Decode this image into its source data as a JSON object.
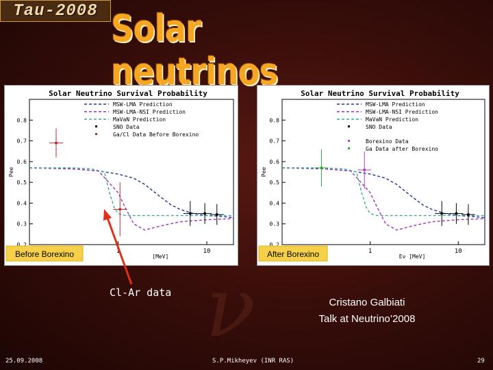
{
  "header": {
    "logo_text": "Tau-2008",
    "title": "Solar neutrinos"
  },
  "annotation": {
    "cl_ar_label": "Cl-Ar data"
  },
  "credit": {
    "line1": "Cristano Galbiati",
    "line2": "Talk at Neutrino’2008"
  },
  "footer": {
    "date": "25.09.2008",
    "author": "S.P.Mikheyev (INR RAS)",
    "page": "29"
  },
  "colors": {
    "msw_lma": "#1f2f9e",
    "msw_lma_nsi": "#9b2fc0",
    "mavan": "#3aa89a",
    "sno": "#000000",
    "gacl": "#c0282c",
    "borexino": "#b040c0",
    "ga_after": "#30b030",
    "badge": "#f7d04a",
    "title_orange": "#f5a623"
  },
  "chart_data": [
    {
      "type": "line",
      "title": "Solar Neutrino Survival Probability",
      "badge": "Before Borexino",
      "xscale": "log",
      "xlim": [
        0.1,
        20
      ],
      "ylim": [
        0.2,
        0.9
      ],
      "yticks": [
        0.2,
        0.3,
        0.4,
        0.5,
        0.6,
        0.7,
        0.8
      ],
      "ytick_labels": [
        "0.2",
        "0.3",
        "0.4",
        "0.5",
        "0.6",
        "0.7",
        "0.8"
      ],
      "xticks": [
        1,
        10
      ],
      "xtick_labels": [
        "1",
        "10"
      ],
      "xlabel": "[MeV]",
      "ylabel": "Pee",
      "legend": [
        "MSW-LMA Prediction",
        "MSW-LMA-NSI Prediction",
        "MaVaN Prediction",
        "SNO Data",
        "Ga/Cl Data Before Borexino"
      ],
      "series": [
        {
          "name": "MSW-LMA Prediction",
          "style": "dashed",
          "x": [
            0.1,
            0.3,
            0.6,
            1,
            1.5,
            2,
            3,
            4,
            5,
            7,
            10,
            15,
            20
          ],
          "y": [
            0.57,
            0.565,
            0.555,
            0.54,
            0.52,
            0.49,
            0.43,
            0.39,
            0.37,
            0.35,
            0.34,
            0.335,
            0.33
          ]
        },
        {
          "name": "MSW-LMA-NSI Prediction",
          "style": "dashed",
          "x": [
            0.1,
            0.3,
            0.6,
            1,
            1.2,
            1.5,
            2,
            3,
            5,
            10,
            20
          ],
          "y": [
            0.57,
            0.565,
            0.555,
            0.45,
            0.38,
            0.3,
            0.27,
            0.29,
            0.31,
            0.32,
            0.325
          ]
        },
        {
          "name": "MaVaN Prediction",
          "style": "dashed",
          "x": [
            0.1,
            0.3,
            0.5,
            0.7,
            0.8,
            0.9,
            1,
            1.2,
            2,
            5,
            10,
            20
          ],
          "y": [
            0.57,
            0.57,
            0.565,
            0.55,
            0.45,
            0.38,
            0.35,
            0.34,
            0.34,
            0.34,
            0.34,
            0.34
          ]
        }
      ],
      "points": [
        {
          "group": "SNO Data",
          "x": 6.5,
          "y": 0.35,
          "err": 0.06
        },
        {
          "group": "SNO Data",
          "x": 9.5,
          "y": 0.35,
          "err": 0.05
        },
        {
          "group": "SNO Data",
          "x": 13,
          "y": 0.345,
          "err": 0.05
        },
        {
          "group": "Ga/Cl Data Before Borexino",
          "x": 0.2,
          "y": 0.69,
          "err": 0.07
        },
        {
          "group": "Ga/Cl Data Before Borexino",
          "x": 1.05,
          "y": 0.37,
          "err": 0.13
        }
      ]
    },
    {
      "type": "line",
      "title": "Solar Neutrino Survival Probability",
      "badge": "After Borexino",
      "xscale": "log",
      "xlim": [
        0.1,
        20
      ],
      "ylim": [
        0.2,
        0.9
      ],
      "yticks": [
        0.2,
        0.3,
        0.4,
        0.5,
        0.6,
        0.7,
        0.8
      ],
      "ytick_labels": [
        "0.2",
        "0.3",
        "0.4",
        "0.5",
        "0.6",
        "0.7",
        "0.8"
      ],
      "xticks": [
        1,
        10
      ],
      "xtick_labels": [
        "1",
        "10"
      ],
      "xlabel": "Eν [MeV]",
      "ylabel": "Pee",
      "legend": [
        "MSW-LMA Prediction",
        "MSW-LMA-NSI Prediction",
        "MaVaN Prediction",
        "SNO Data",
        "Borexino Data",
        "Ga Data after Borexino"
      ],
      "series": [
        {
          "name": "MSW-LMA Prediction",
          "style": "dashed",
          "x": [
            0.1,
            0.3,
            0.6,
            1,
            1.5,
            2,
            3,
            4,
            5,
            7,
            10,
            15,
            20
          ],
          "y": [
            0.57,
            0.565,
            0.555,
            0.54,
            0.52,
            0.49,
            0.43,
            0.39,
            0.37,
            0.35,
            0.34,
            0.335,
            0.33
          ]
        },
        {
          "name": "MSW-LMA-NSI Prediction",
          "style": "dashed",
          "x": [
            0.1,
            0.3,
            0.6,
            1,
            1.2,
            1.5,
            2,
            3,
            5,
            10,
            20
          ],
          "y": [
            0.57,
            0.565,
            0.555,
            0.45,
            0.38,
            0.3,
            0.27,
            0.29,
            0.31,
            0.32,
            0.325
          ]
        },
        {
          "name": "MaVaN Prediction",
          "style": "dashed",
          "x": [
            0.1,
            0.3,
            0.5,
            0.7,
            0.8,
            0.9,
            1,
            1.2,
            2,
            5,
            10,
            20
          ],
          "y": [
            0.57,
            0.57,
            0.565,
            0.55,
            0.45,
            0.38,
            0.35,
            0.34,
            0.34,
            0.34,
            0.34,
            0.34
          ]
        }
      ],
      "points": [
        {
          "group": "SNO Data",
          "x": 6.5,
          "y": 0.35,
          "err": 0.06
        },
        {
          "group": "SNO Data",
          "x": 9.5,
          "y": 0.35,
          "err": 0.05
        },
        {
          "group": "SNO Data",
          "x": 13,
          "y": 0.345,
          "err": 0.05
        },
        {
          "group": "Ga Data after Borexino",
          "x": 0.28,
          "y": 0.57,
          "err": 0.09
        },
        {
          "group": "Borexino Data",
          "x": 0.86,
          "y": 0.56,
          "err": 0.09
        }
      ]
    }
  ]
}
